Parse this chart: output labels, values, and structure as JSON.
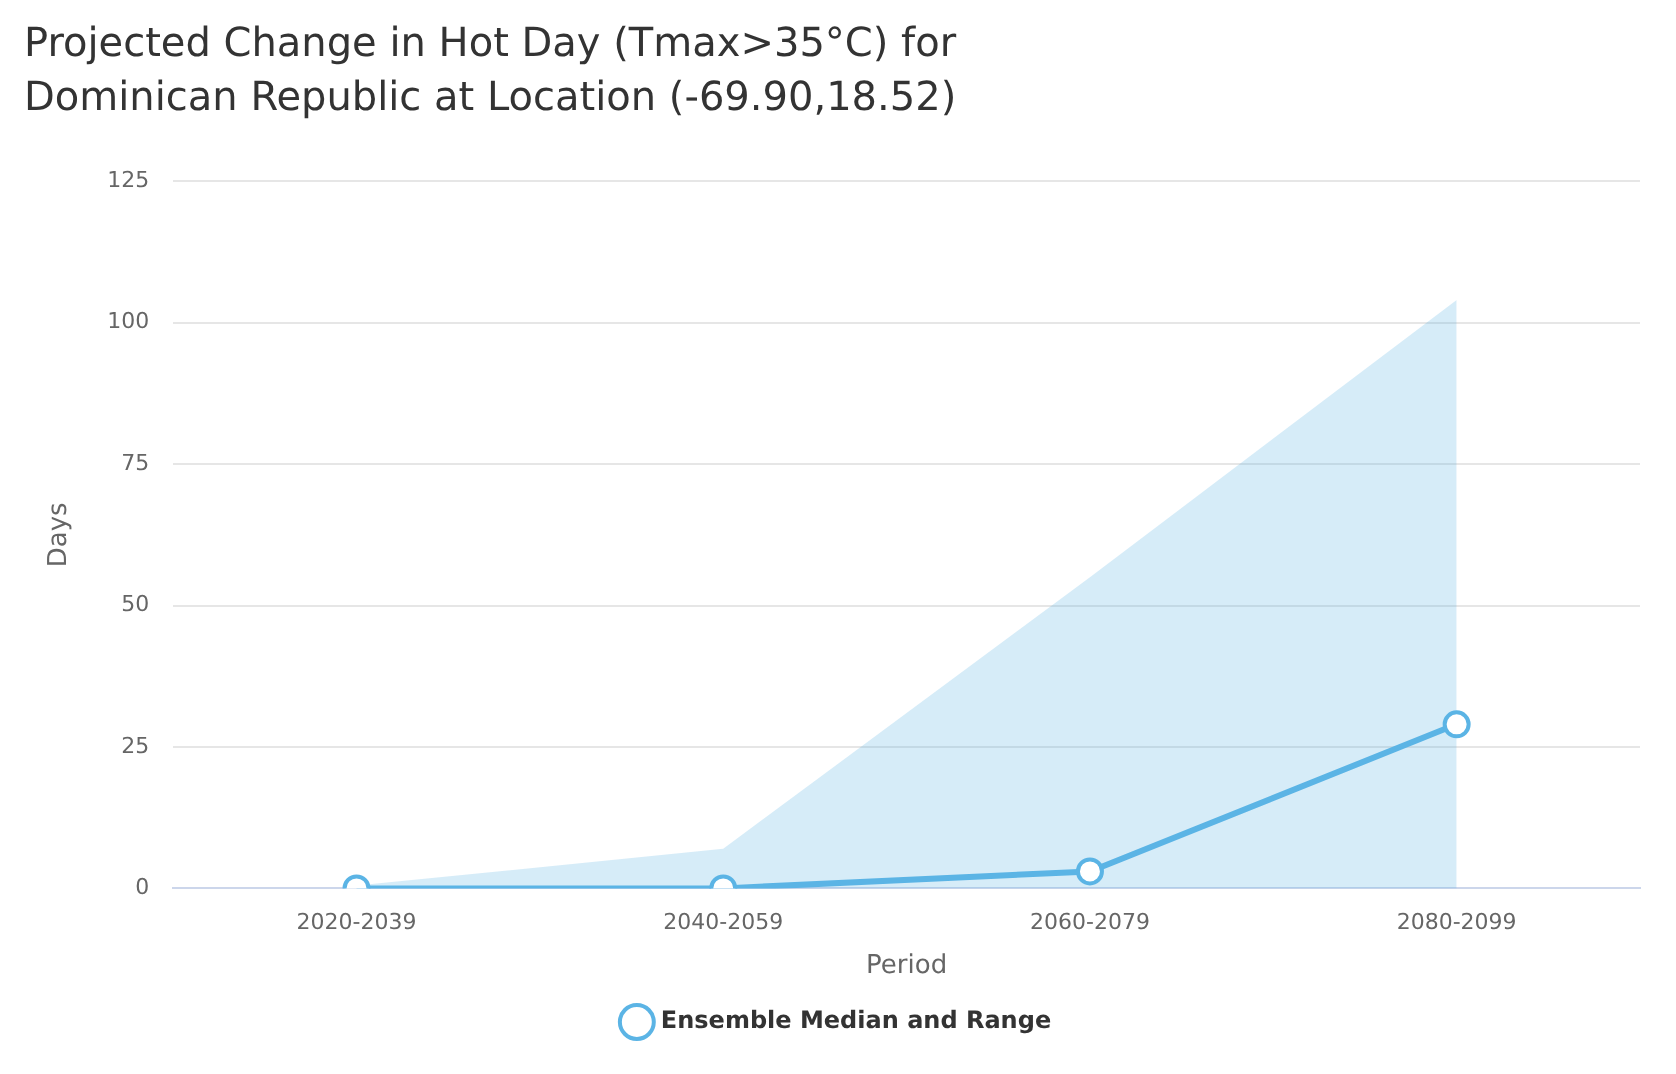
{
  "chart_data": {
    "type": "line",
    "title": "Projected Change in Hot Day (Tmax>35°C) for Dominican Republic at Location (-69.90,18.52)",
    "xlabel": "Period",
    "ylabel": "Days",
    "categories": [
      "2020-2039",
      "2040-2059",
      "2060-2079",
      "2080-2099"
    ],
    "series": [
      {
        "name": "Ensemble Median and Range",
        "color": "#5bb4e5",
        "values": [
          0,
          0,
          3,
          29
        ],
        "lower": [
          0,
          0,
          0,
          0
        ],
        "upper": [
          0.5,
          7,
          55,
          104
        ]
      }
    ],
    "ylim": [
      0,
      125
    ],
    "yticks": [
      0,
      25,
      50,
      75,
      100,
      125
    ],
    "grid": "y",
    "legend": "bottom",
    "marker": "circle",
    "line_style": "solid"
  }
}
